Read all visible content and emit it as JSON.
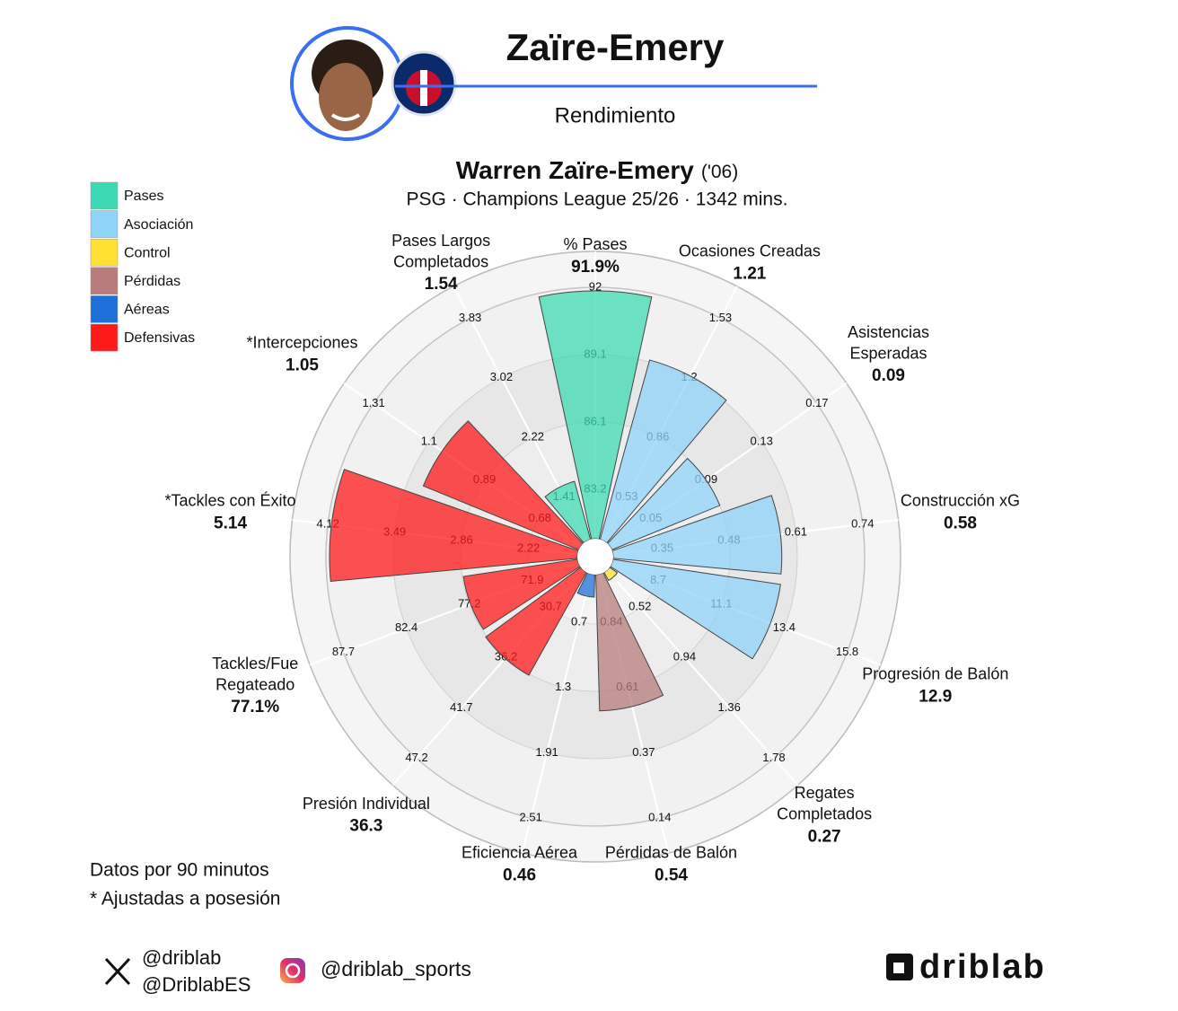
{
  "chart_data": {
    "type": "pizza",
    "title": "Zaïre-Emery",
    "subtitle": "Rendimiento",
    "player_name": "Warren Zaïre-Emery",
    "player_born": "('06)",
    "context": "PSG · Champions League 25/26 · 1342 mins.",
    "legend": [
      {
        "name": "Pases",
        "color": "#3dd9b3"
      },
      {
        "name": "Asociación",
        "color": "#8fd3f8"
      },
      {
        "name": "Control",
        "color": "#ffe033"
      },
      {
        "name": "Pérdidas",
        "color": "#b87c7c"
      },
      {
        "name": "Aéreas",
        "color": "#1f6fd8"
      },
      {
        "name": "Defensivas",
        "color": "#ff1a1a"
      }
    ],
    "slices": [
      {
        "name": [
          "% Pases"
        ],
        "value": 91.9,
        "value_label": "91.9%",
        "ticks": [
          83.2,
          86.1,
          89.1,
          92
        ],
        "color": "#3dd9b3"
      },
      {
        "name": [
          "Ocasiones Creadas"
        ],
        "value": 1.21,
        "ticks": [
          0.53,
          0.86,
          1.2,
          1.53
        ],
        "color": "#8fd3f8"
      },
      {
        "name": [
          "Asistencias",
          "Esperadas"
        ],
        "value": 0.09,
        "ticks": [
          0.05,
          0.09,
          0.13,
          0.17
        ],
        "color": "#8fd3f8"
      },
      {
        "name": [
          "Construcción xG"
        ],
        "value": 0.58,
        "ticks": [
          0.35,
          0.48,
          0.61,
          0.74
        ],
        "color": "#8fd3f8"
      },
      {
        "name": [
          "Progresión de Balón"
        ],
        "value": 12.9,
        "ticks": [
          8.7,
          11.1,
          13.4,
          15.8
        ],
        "color": "#8fd3f8"
      },
      {
        "name": [
          "Regates",
          "Completados"
        ],
        "value": 0.27,
        "ticks": [
          0.52,
          0.94,
          1.36,
          1.78
        ],
        "color": "#ffe033"
      },
      {
        "name": [
          "Pérdidas de Balón"
        ],
        "value": 0.54,
        "ticks": [
          0.84,
          0.61,
          0.37,
          0.14
        ],
        "color": "#b87c7c"
      },
      {
        "name": [
          "Eficiencia Aérea"
        ],
        "value": 0.46,
        "ticks": [
          0.7,
          1.3,
          1.91,
          2.51
        ],
        "color": "#1f6fd8"
      },
      {
        "name": [
          "Presión Individual"
        ],
        "value": 36.3,
        "ticks": [
          30.7,
          36.2,
          41.7,
          47.2
        ],
        "color": "#ff1a1a"
      },
      {
        "name": [
          "Tackles/Fue",
          "Regateado"
        ],
        "value": 77.1,
        "value_label": "77.1%",
        "ticks": [
          71.9,
          77.2,
          82.4,
          87.7
        ],
        "color": "#ff1a1a"
      },
      {
        "name": [
          "*Tackles con Éxito"
        ],
        "value": 5.14,
        "ticks": [
          2.22,
          2.86,
          3.49,
          4.12
        ],
        "color": "#ff1a1a"
      },
      {
        "name": [
          "*Intercepciones"
        ],
        "value": 1.05,
        "ticks": [
          0.68,
          0.89,
          1.1,
          1.31
        ],
        "color": "#ff1a1a"
      },
      {
        "name": [
          "Pases Largos",
          "Completados"
        ],
        "value": 1.54,
        "ticks": [
          1.41,
          2.22,
          3.02,
          3.83
        ],
        "color": "#3dd9b3"
      }
    ],
    "notes": [
      "Datos por 90 minutos",
      "* Ajustadas a posesión"
    ],
    "social": {
      "x": [
        "@driblab",
        "@DriblabES"
      ],
      "instagram": "@driblab_sports",
      "brand": "driblab"
    }
  }
}
